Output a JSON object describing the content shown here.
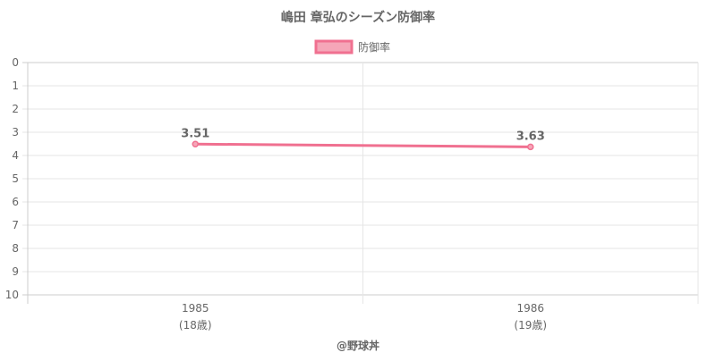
{
  "chart_data": {
    "type": "line",
    "title": "嶋田 章弘のシーズン防御率",
    "legend": {
      "position": "top",
      "label": "防御率"
    },
    "y_reversed": true,
    "ylim": [
      0,
      10
    ],
    "y_ticks": [
      "0",
      "1",
      "2",
      "3",
      "4",
      "5",
      "6",
      "7",
      "8",
      "9",
      "10"
    ],
    "categories": [
      {
        "year": "1985",
        "age": "(18歳)"
      },
      {
        "year": "1986",
        "age": "(19歳)"
      }
    ],
    "series": [
      {
        "name": "防御率",
        "values": [
          3.51,
          3.63
        ],
        "labels": [
          "3.51",
          "3.63"
        ]
      }
    ],
    "grid": true,
    "colors": {
      "line": "#f07090",
      "fill": "#f5a6b8",
      "grid": "#e6e6e6",
      "text": "#666666"
    }
  },
  "footer": {
    "credit": "@野球丼"
  }
}
